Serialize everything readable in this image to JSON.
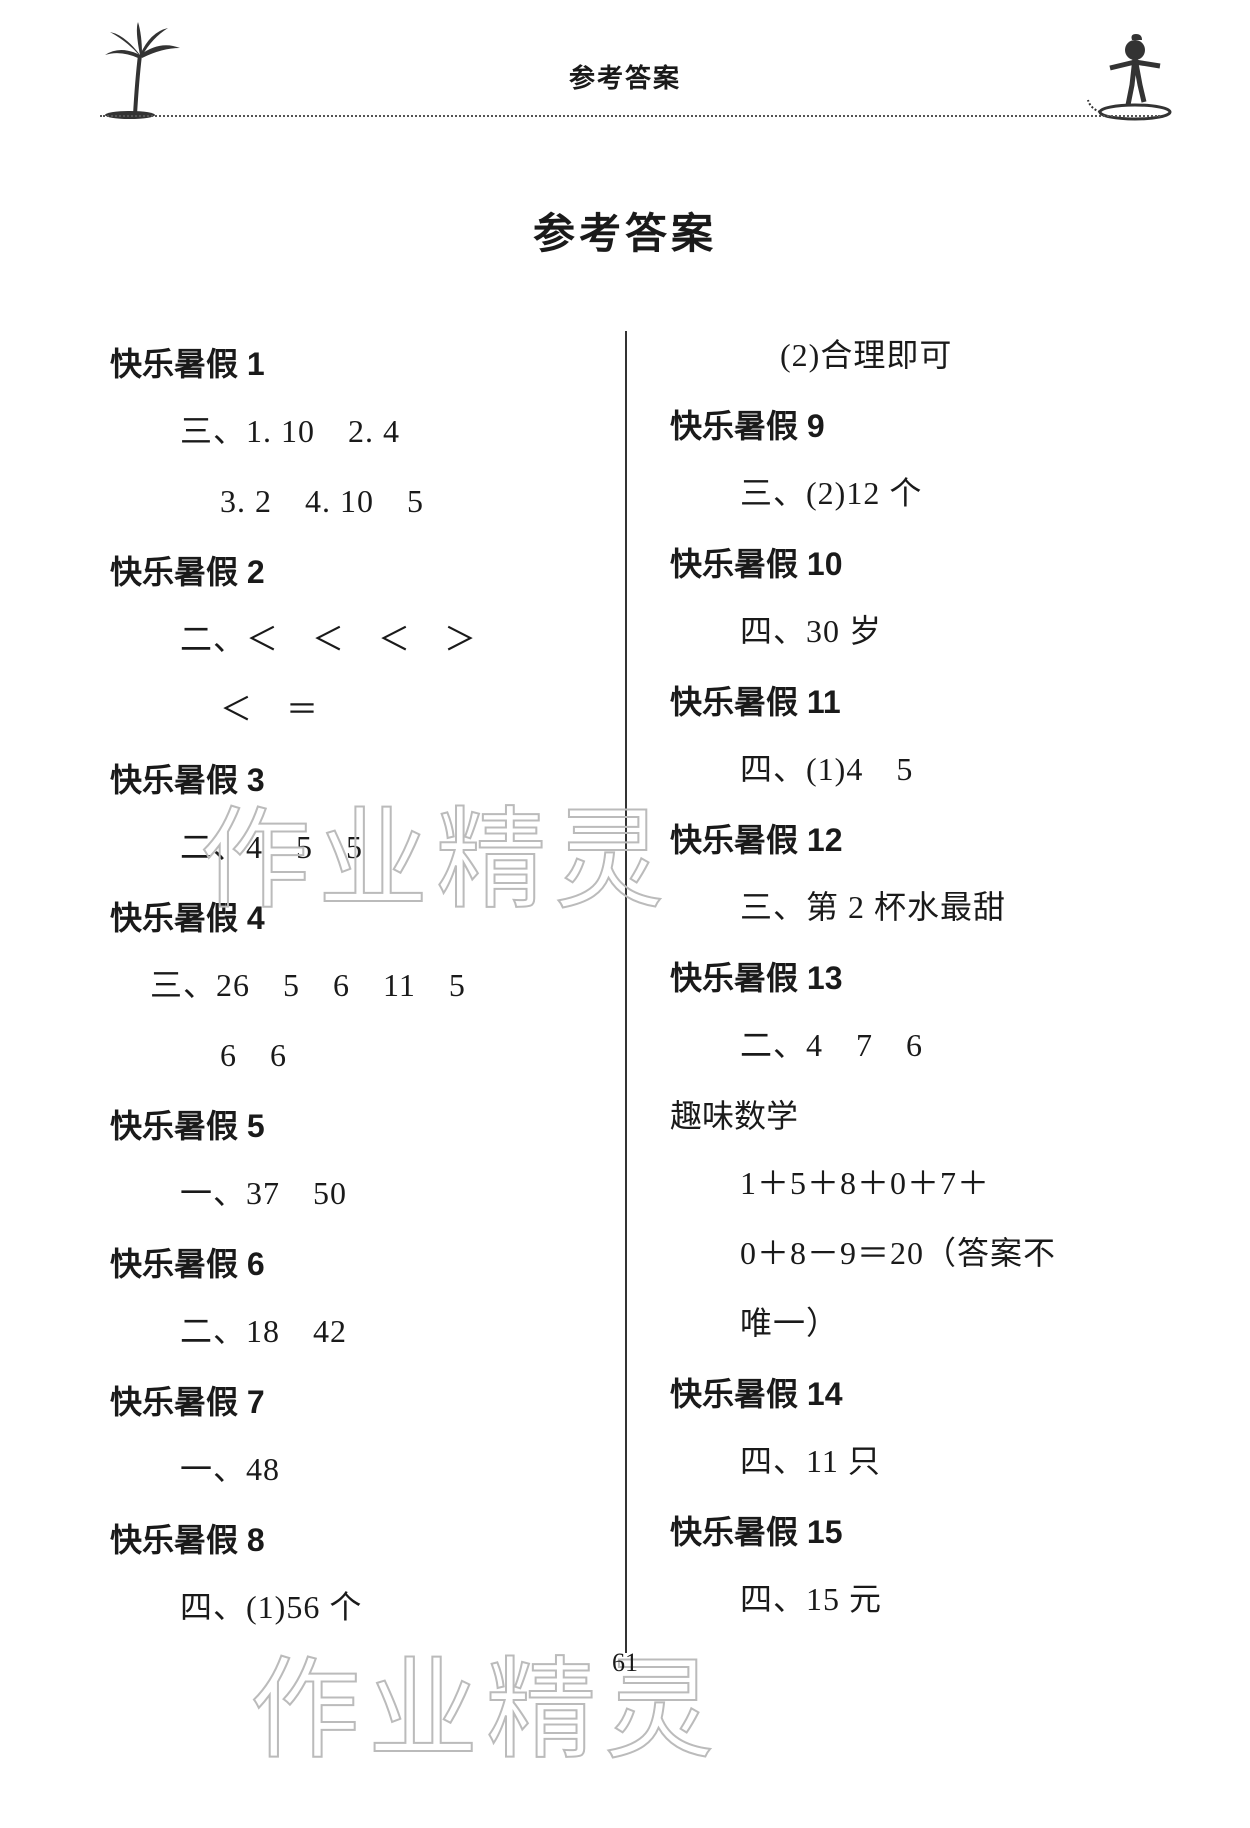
{
  "header": {
    "small_title": "参考答案"
  },
  "main_title": "参考答案",
  "watermark_text": "作业精灵",
  "page_number": "61",
  "left": [
    {
      "type": "title",
      "text": "快乐暑假 1"
    },
    {
      "type": "ans",
      "text": "三、1. 10　2. 4"
    },
    {
      "type": "ans2",
      "text": "3. 2　4. 10　5"
    },
    {
      "type": "title",
      "text": "快乐暑假 2"
    },
    {
      "type": "ans",
      "text": "二、＜　＜　＜　＞"
    },
    {
      "type": "ans2",
      "text": "＜　＝"
    },
    {
      "type": "title",
      "text": "快乐暑假 3"
    },
    {
      "type": "ans",
      "text": "二、4　5　5"
    },
    {
      "type": "title",
      "text": "快乐暑假 4"
    },
    {
      "type": "ans0",
      "text": "三、26　5　6　11　5"
    },
    {
      "type": "ans2",
      "text": "6　6"
    },
    {
      "type": "title",
      "text": "快乐暑假 5"
    },
    {
      "type": "ans",
      "text": "一、37　50"
    },
    {
      "type": "title",
      "text": "快乐暑假 6"
    },
    {
      "type": "ans",
      "text": "二、18　42"
    },
    {
      "type": "title",
      "text": "快乐暑假 7"
    },
    {
      "type": "ans",
      "text": "一、48"
    },
    {
      "type": "title",
      "text": "快乐暑假 8"
    },
    {
      "type": "ans",
      "text": "四、(1)56 个"
    }
  ],
  "right": [
    {
      "type": "ans2",
      "text": "(2)合理即可"
    },
    {
      "type": "title",
      "text": "快乐暑假 9"
    },
    {
      "type": "ans",
      "text": "三、(2)12 个"
    },
    {
      "type": "title",
      "text": "快乐暑假 10"
    },
    {
      "type": "ans",
      "text": "四、30 岁"
    },
    {
      "type": "title",
      "text": "快乐暑假 11"
    },
    {
      "type": "ans",
      "text": "四、(1)4　5"
    },
    {
      "type": "title",
      "text": "快乐暑假 12"
    },
    {
      "type": "ans",
      "text": "三、第 2 杯水最甜"
    },
    {
      "type": "title",
      "text": "快乐暑假 13"
    },
    {
      "type": "ans",
      "text": "二、4　7　6"
    },
    {
      "type": "title0",
      "text": "趣味数学"
    },
    {
      "type": "ans",
      "text": "1＋5＋8＋0＋7＋"
    },
    {
      "type": "ans",
      "text": "0＋8－9＝20（答案不"
    },
    {
      "type": "ans",
      "text": "唯一）"
    },
    {
      "type": "title",
      "text": "快乐暑假 14"
    },
    {
      "type": "ans",
      "text": "四、11 只"
    },
    {
      "type": "title",
      "text": "快乐暑假 15"
    },
    {
      "type": "ans",
      "text": "四、15 元"
    }
  ]
}
